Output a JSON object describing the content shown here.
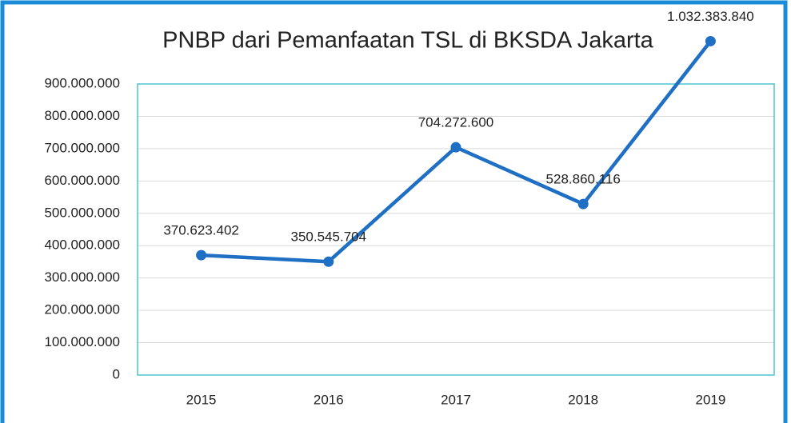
{
  "chart_data": {
    "type": "line",
    "title": "PNBP dari Pemanfaatan TSL di BKSDA Jakarta",
    "categories": [
      "2015",
      "2016",
      "2017",
      "2018",
      "2019"
    ],
    "series": [
      {
        "color": "#1f6fc5",
        "values": [
          370623402,
          350545704,
          704272600,
          528860116,
          1032383840
        ],
        "value_labels": [
          "370.623.402",
          "350.545.704",
          "704.272.600",
          "528.860.116",
          "1.032.383.840"
        ]
      }
    ],
    "ylim": [
      0,
      900000000
    ],
    "yticks": [
      0,
      {
        "value": 100000000,
        "label": "100.000.000"
      },
      {
        "value": 200000000,
        "label": "200.000.000"
      },
      {
        "value": 300000000,
        "label": "300.000.000"
      },
      {
        "value": 400000000,
        "label": "400.000.000"
      },
      {
        "value": 500000000,
        "label": "500.000.000"
      },
      {
        "value": 600000000,
        "label": "600.000.000"
      },
      {
        "value": 700000000,
        "label": "700.000.000"
      },
      {
        "value": 800000000,
        "label": "800.000.000"
      },
      {
        "value": 900000000,
        "label": "900.000.000"
      }
    ],
    "grid": true
  }
}
